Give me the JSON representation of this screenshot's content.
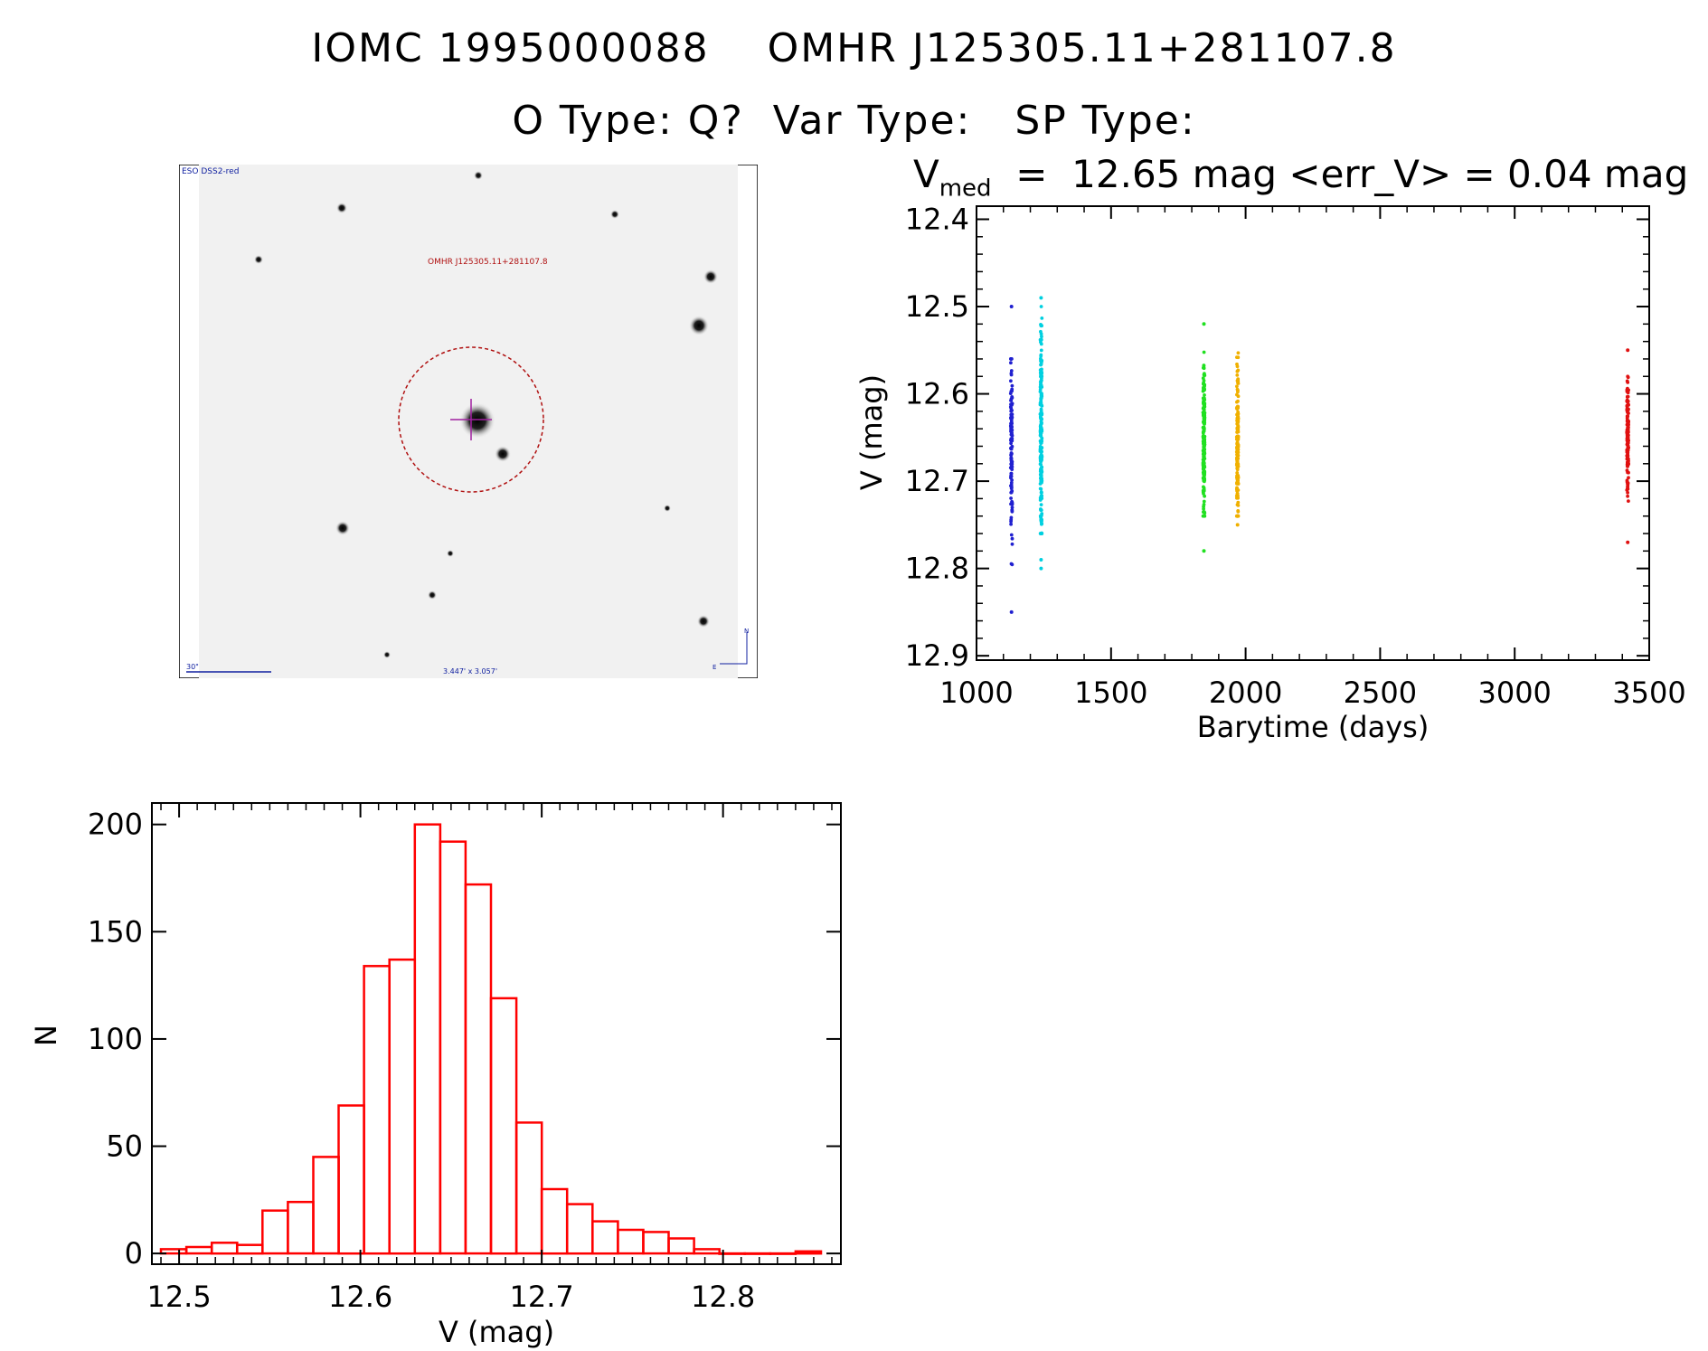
{
  "header": {
    "line1": "IOMC 1995000088    OMHR J125305.11+281107.8",
    "line2": "O Type: Q?  Var Type:   SP Type:"
  },
  "finder_chart": {
    "survey_label": "ESO DSS2-red",
    "target_label": "OMHR J125305.11+281107.8",
    "scale_label": "30\"",
    "size_label": "3.447' x 3.057'",
    "north_label": "N",
    "east_label": "E",
    "colors": {
      "circle": "#b01010",
      "crosshair": "#a020a0",
      "labels": "#1020a0"
    }
  },
  "light_curve": {
    "title_main": "V",
    "title_sub": "med",
    "title_rest": "  =  12.65 mag <err_V> = 0.04 mag"
  },
  "chart_data": [
    {
      "type": "scatter",
      "xlabel": "Barytime (days)",
      "ylabel": "V (mag)",
      "xlim": [
        1000,
        3500
      ],
      "ylim": [
        12.9,
        12.4
      ],
      "y_inverted": true,
      "xticks": [
        "1000",
        "1500",
        "2000",
        "2500",
        "3000",
        "3500"
      ],
      "yticks": [
        "12.4",
        "12.5",
        "12.6",
        "12.7",
        "12.8",
        "12.9"
      ],
      "series": [
        {
          "color": "#2020d0",
          "x": 1130,
          "n": 120,
          "median": 12.65,
          "min": 12.56,
          "max": 12.8,
          "outliers": [
            12.5,
            12.85
          ]
        },
        {
          "color": "#00d0e0",
          "x": 1240,
          "n": 220,
          "median": 12.65,
          "min": 12.5,
          "max": 12.76,
          "outliers": [
            12.49,
            12.79,
            12.8
          ]
        },
        {
          "color": "#20e020",
          "x": 1845,
          "n": 200,
          "median": 12.65,
          "min": 12.55,
          "max": 12.74,
          "outliers": [
            12.52,
            12.78
          ]
        },
        {
          "color": "#f0b000",
          "x": 1970,
          "n": 160,
          "median": 12.66,
          "min": 12.55,
          "max": 12.74,
          "outliers": [
            12.75
          ]
        },
        {
          "color": "#e01010",
          "x": 3420,
          "n": 140,
          "median": 12.65,
          "min": 12.58,
          "max": 12.73,
          "outliers": [
            12.55,
            12.77
          ]
        }
      ]
    },
    {
      "type": "bar",
      "xlabel": "V (mag)",
      "ylabel": "N",
      "xlim": [
        12.485,
        12.865
      ],
      "ylim": [
        -5,
        210
      ],
      "xticks": [
        "12.5",
        "12.6",
        "12.7",
        "12.8"
      ],
      "yticks": [
        "0",
        "50",
        "100",
        "150",
        "200"
      ],
      "bin_width": 0.014,
      "bin_starts": [
        12.49,
        12.504,
        12.518,
        12.532,
        12.546,
        12.56,
        12.574,
        12.588,
        12.602,
        12.616,
        12.63,
        12.644,
        12.658,
        12.672,
        12.686,
        12.7,
        12.714,
        12.728,
        12.742,
        12.756,
        12.77,
        12.784,
        12.798,
        12.812,
        12.826,
        12.84
      ],
      "values": [
        2,
        3,
        5,
        4,
        20,
        24,
        45,
        69,
        134,
        137,
        200,
        192,
        172,
        119,
        61,
        30,
        23,
        15,
        11,
        10,
        7,
        2,
        0,
        0,
        0,
        1
      ],
      "color": "#ff0000"
    }
  ]
}
